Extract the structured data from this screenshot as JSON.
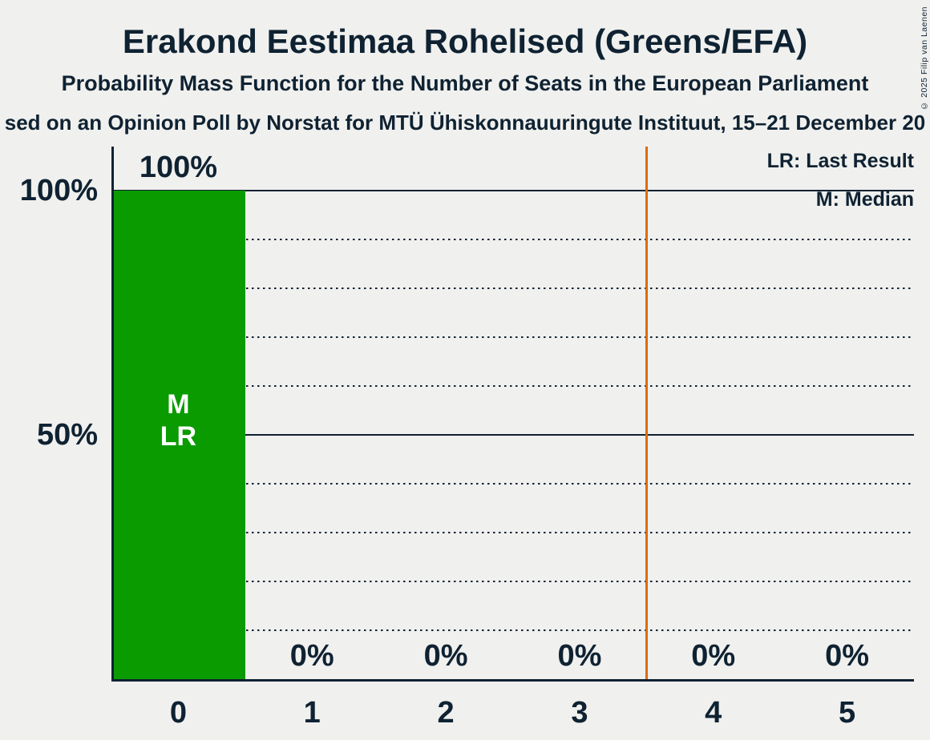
{
  "title": "Erakond Eestimaa Rohelised (Greens/EFA)",
  "subtitle": "Probability Mass Function for the Number of Seats in the European Parliament",
  "source_line": "sed on an Opinion Poll by Norstat for MTÜ Ühiskonnauuringute Instituut, 15–21 December 20",
  "copyright": "© 2025 Filip van Laenen",
  "legend": {
    "lr": "LR: Last Result",
    "m": "M: Median"
  },
  "colors": {
    "bg": "#F0F0EE",
    "text": "#0F2232",
    "bar": "#0A9B00",
    "vline": "#DC6D00",
    "bar_label_text": "#FFFFFF"
  },
  "chart_data": {
    "type": "bar",
    "title": "Erakond Eestimaa Rohelised (Greens/EFA)",
    "xlabel": "",
    "ylabel": "",
    "categories": [
      "0",
      "1",
      "2",
      "3",
      "4",
      "5"
    ],
    "values": [
      100,
      0,
      0,
      0,
      0,
      0
    ],
    "value_labels": [
      "100%",
      "0%",
      "0%",
      "0%",
      "0%",
      "0%"
    ],
    "y_axis_ticks": [
      {
        "value": 100,
        "label": "100%"
      },
      {
        "value": 50,
        "label": "50%"
      }
    ],
    "solid_gridlines_pct": [
      100,
      50
    ],
    "dotted_gridlines_pct": [
      90,
      80,
      70,
      60,
      40,
      30,
      20,
      10
    ],
    "ylim": [
      0,
      109
    ],
    "grid": "horizontal",
    "legend_position": "top-right",
    "vertical_line_at_x": 3.5,
    "median_seats": 0,
    "last_result_seats": 0,
    "bar_annotations": [
      {
        "category": "0",
        "labels": [
          "M",
          "LR"
        ]
      }
    ]
  }
}
